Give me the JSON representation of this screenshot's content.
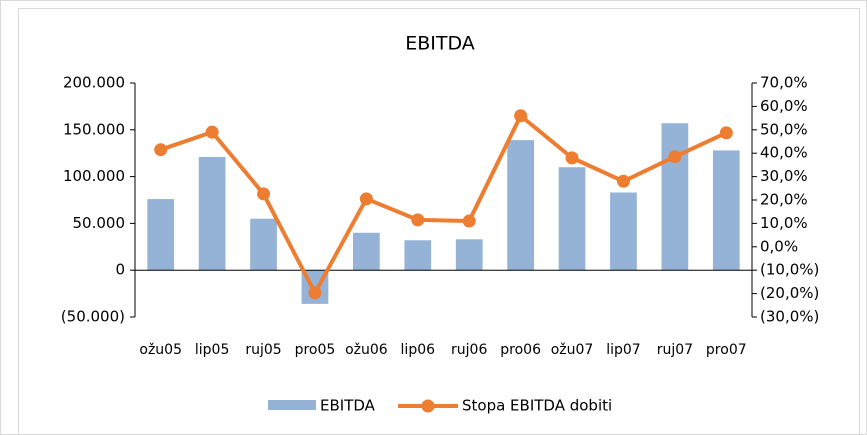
{
  "chart_data": {
    "type": "bar-line",
    "title": "EBITDA",
    "categories": [
      "ožu05",
      "lip05",
      "ruj05",
      "pro05",
      "ožu06",
      "lip06",
      "ruj06",
      "pro06",
      "ožu07",
      "lip07",
      "ruj07",
      "pro07"
    ],
    "series": [
      {
        "name": "EBITDA",
        "type": "bar",
        "color": "#95b3d7",
        "values": [
          76000,
          121000,
          55000,
          -36000,
          40000,
          32000,
          33000,
          139000,
          110000,
          83000,
          157000,
          128000
        ]
      },
      {
        "name": "Stopa EBITDA dobiti",
        "type": "line",
        "axis": "y2",
        "color": "#ed7d31",
        "values": [
          41.5,
          49,
          22.6,
          -19.7,
          20.5,
          11.5,
          11,
          56,
          38,
          28,
          38.5,
          48.7
        ]
      }
    ],
    "ylim": [
      -50000,
      200000
    ],
    "yticks": [
      {
        "value": -50000,
        "label": "(50.000)"
      },
      0,
      {
        "value": 50000,
        "label": "50.000"
      },
      {
        "value": 100000,
        "label": "100.000"
      },
      {
        "value": 150000,
        "label": "150.000"
      },
      {
        "value": 200000,
        "label": "200.000"
      }
    ],
    "y2lim": [
      -30,
      70
    ],
    "y2ticks": [
      {
        "value": -30,
        "label": "(30,0%)"
      },
      {
        "value": -20,
        "label": "(20,0%)"
      },
      {
        "value": -10,
        "label": "(10,0%)"
      },
      {
        "value": 0,
        "label": "0,0%"
      },
      {
        "value": 10,
        "label": "10,0%"
      },
      {
        "value": 20,
        "label": "20,0%"
      },
      {
        "value": 30,
        "label": "30,0%"
      },
      {
        "value": 40,
        "label": "40,0%"
      },
      {
        "value": 50,
        "label": "50,0%"
      },
      {
        "value": 60,
        "label": "60,0%"
      },
      {
        "value": 70,
        "label": "70,0%"
      }
    ],
    "legend": "bottom"
  }
}
